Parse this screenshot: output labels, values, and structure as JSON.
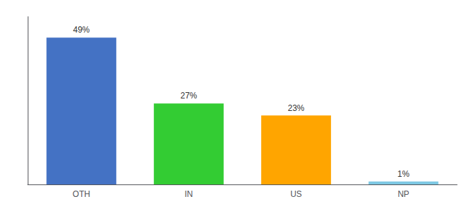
{
  "chart_data": {
    "type": "bar",
    "categories": [
      "OTH",
      "IN",
      "US",
      "NP"
    ],
    "values": [
      49,
      27,
      23,
      1
    ],
    "value_labels": [
      "49%",
      "27%",
      "23%",
      "1%"
    ],
    "colors": [
      "#4472C4",
      "#33CC33",
      "#FFA500",
      "#7EC8E3"
    ],
    "ylim": [
      0,
      56
    ],
    "grid": false,
    "data_labels": true,
    "tick_labels": "x"
  }
}
